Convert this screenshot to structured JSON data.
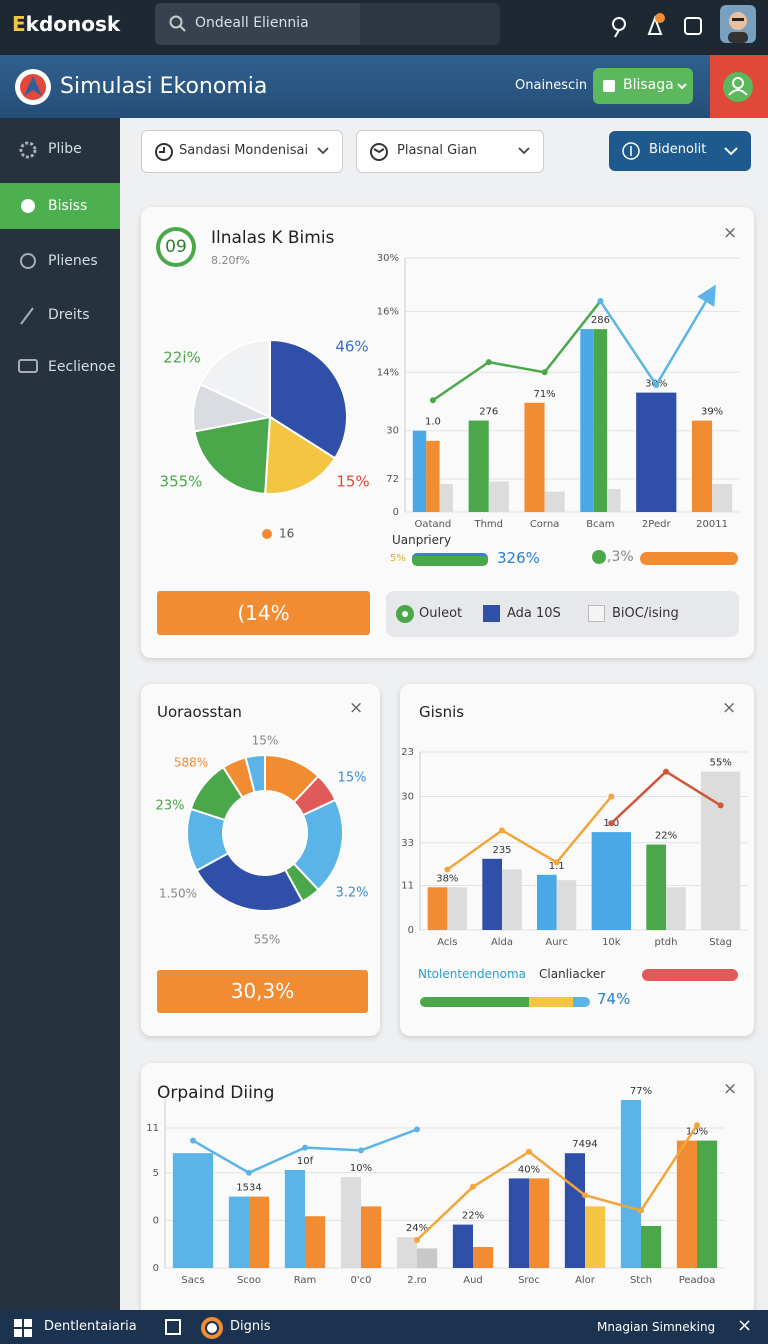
{
  "topbar": {
    "logo": "Ekdonosk",
    "search": "Ondeall Eliennia"
  },
  "header": {
    "title": "Simulasi Ekonomia",
    "link": "Onainescin",
    "button": "Blisaga"
  },
  "sidebar": {
    "items": [
      "Plibe",
      "Bisiss",
      "Plienes",
      "Dreits",
      "Eeclienoe"
    ]
  },
  "filters": {
    "dropdowns": [
      "Sandasi Mondenisai",
      "Plasnal Gian"
    ],
    "button": "Bidenolit"
  },
  "panels": [
    {
      "badge": "09",
      "title": "Ilnalas K Bimis",
      "subtitle": "8.20f%",
      "stats_label": "Uanpriery",
      "stats": [
        "5%",
        "326%",
        ",3%"
      ],
      "button": "(14%",
      "legend": [
        "Ouleot",
        "Ada 10S",
        "BiOC/ising"
      ]
    },
    {
      "title": "Uoraosstan",
      "button": "30,3%"
    },
    {
      "title": "Gisnis",
      "labels": [
        "Ntolentendenoma",
        "Clanliacker"
      ],
      "value": "74%"
    },
    {
      "title": "Orpaind Diing"
    }
  ],
  "taskbar": {
    "items": [
      "Dentlentaiaria",
      "Dignis"
    ],
    "right": "Mnagian Simneking"
  },
  "chart_data": [
    {
      "type": "pie",
      "values": [
        34,
        17,
        21,
        10,
        18
      ],
      "colors": [
        "#2f4fa8",
        "#f4c542",
        "#4aa84a",
        "#d9dde2",
        "#f1f2f4"
      ],
      "annotations": [
        "46%",
        "15%",
        "355%",
        "22i%"
      ],
      "legend": "16",
      "legend_color": "#ef8a33"
    },
    {
      "type": "bar",
      "categories": [
        "Oatand",
        "Thmd",
        "Corna",
        "Bcam",
        "2Pedr",
        "20011"
      ],
      "series": [
        {
          "color": "#4aa8e6",
          "values": [
            32,
            null,
            null,
            72,
            null,
            null
          ]
        },
        {
          "color": "#f28c33",
          "values": [
            28,
            null,
            43,
            null,
            null,
            36
          ]
        },
        {
          "color": "#4aa84a",
          "values": [
            null,
            36,
            null,
            72,
            null,
            null
          ]
        },
        {
          "color": "#2f4fa8",
          "values": [
            null,
            null,
            null,
            null,
            47,
            null
          ]
        },
        {
          "color": "#dcdcdc",
          "values": [
            11,
            12,
            8,
            9,
            null,
            11
          ]
        }
      ],
      "lines": [
        {
          "color": "#4aa84a",
          "values": [
            44,
            59,
            55,
            83,
            null,
            null
          ]
        },
        {
          "color": "#5ab4e8",
          "values": [
            null,
            null,
            null,
            83,
            50,
            87
          ],
          "arrow": true
        }
      ],
      "annotations": [
        "1.0",
        "276",
        "71%",
        "286",
        "30%",
        "39%"
      ],
      "ylim": [
        0,
        100
      ],
      "yticks": [
        {
          "value": 100,
          "label": "30%"
        },
        {
          "value": 79,
          "label": "16%"
        },
        {
          "value": 55,
          "label": "14%"
        },
        {
          "value": 32,
          "label": "30"
        },
        {
          "value": 13,
          "label": "72"
        },
        0
      ],
      "grid": true
    },
    {
      "type": "donut",
      "values": [
        12,
        6,
        20,
        4,
        25,
        13,
        11,
        5,
        4
      ],
      "colors": [
        "#f28c33",
        "#e05a5a",
        "#5ab4e8",
        "#4aa84a",
        "#2f4fa8",
        "#5ab4e8",
        "#4aa84a",
        "#f28c33",
        "#5ab4e8"
      ],
      "annotations": [
        "15%",
        "588%",
        "15%",
        "23%",
        "1.50%",
        "3.2%",
        "55%"
      ]
    },
    {
      "type": "bar",
      "categories": [
        "Acis",
        "Alda",
        "Aurc",
        "10k",
        "ptdh",
        "Stag"
      ],
      "series": [
        {
          "color": "#f28c33",
          "values": [
            24,
            null,
            null,
            null,
            null,
            null
          ]
        },
        {
          "color": "#2f4fa8",
          "values": [
            null,
            40,
            null,
            null,
            null,
            null
          ]
        },
        {
          "color": "#4aa8e6",
          "values": [
            null,
            null,
            31,
            55,
            null,
            null
          ]
        },
        {
          "color": "#4aa84a",
          "values": [
            null,
            null,
            null,
            null,
            48,
            null
          ]
        },
        {
          "color": "#dcdcdc",
          "values": [
            24,
            34,
            28,
            null,
            24,
            89
          ]
        }
      ],
      "lines": [
        {
          "color": "#f2a53a",
          "values": [
            34,
            56,
            38,
            75,
            null,
            null
          ]
        },
        {
          "color": "#d0563a",
          "values": [
            null,
            null,
            null,
            60,
            89,
            70
          ]
        }
      ],
      "annotations": [
        "38%",
        "235",
        "1.1",
        "1.0",
        "22%",
        "55%"
      ],
      "ylim": [
        0,
        100
      ],
      "yticks": [
        {
          "value": 100,
          "label": "23"
        },
        {
          "value": 75,
          "label": "30"
        },
        {
          "value": 49,
          "label": "33"
        },
        {
          "value": 25,
          "label": "11"
        },
        0
      ],
      "grid": true
    },
    {
      "type": "bar",
      "categories": [
        "Sacs",
        "Scoo",
        "Ram",
        "0'c0",
        "2.ro",
        "Aud",
        "Sroc",
        "Alor",
        "Stch",
        "Peadoa"
      ],
      "series": [
        {
          "color": "#5ab4e8",
          "values": [
            82,
            51,
            70,
            null,
            null,
            null,
            null,
            null,
            120,
            null
          ]
        },
        {
          "color": "#2f4fa8",
          "values": [
            null,
            null,
            null,
            null,
            null,
            31,
            64,
            82,
            null,
            null
          ]
        },
        {
          "color": "#dcdcdc",
          "values": [
            null,
            null,
            null,
            65,
            22,
            null,
            null,
            null,
            null,
            null
          ]
        },
        {
          "color": "#c8c8c8",
          "values": [
            null,
            null,
            null,
            null,
            14,
            null,
            null,
            null,
            null,
            null
          ]
        },
        {
          "color": "#f28c33",
          "values": [
            null,
            51,
            37,
            44,
            null,
            15,
            64,
            null,
            null,
            91
          ]
        },
        {
          "color": "#f4c542",
          "values": [
            null,
            null,
            null,
            null,
            null,
            null,
            null,
            44,
            null,
            null
          ]
        },
        {
          "color": "#4aa84a",
          "values": [
            null,
            null,
            null,
            null,
            null,
            null,
            null,
            null,
            30,
            91
          ]
        }
      ],
      "lines": [
        {
          "color": "#5ab4e8",
          "values": [
            91,
            68,
            86,
            84,
            99,
            null,
            null,
            null,
            null,
            null
          ]
        },
        {
          "color": "#f2a53a",
          "values": [
            null,
            null,
            null,
            null,
            20,
            58,
            83,
            52,
            41,
            102
          ]
        }
      ],
      "annotations": [
        null,
        "1534",
        "10f",
        "10%",
        "24%",
        "22%",
        "40%",
        "7494",
        "77%",
        "10%"
      ],
      "ylim": [
        0,
        120
      ],
      "yticks": [
        {
          "value": 100,
          "label": "11"
        },
        {
          "value": 68,
          "label": "5"
        },
        {
          "value": 34,
          "label": "0"
        },
        0
      ],
      "grid": true
    }
  ]
}
